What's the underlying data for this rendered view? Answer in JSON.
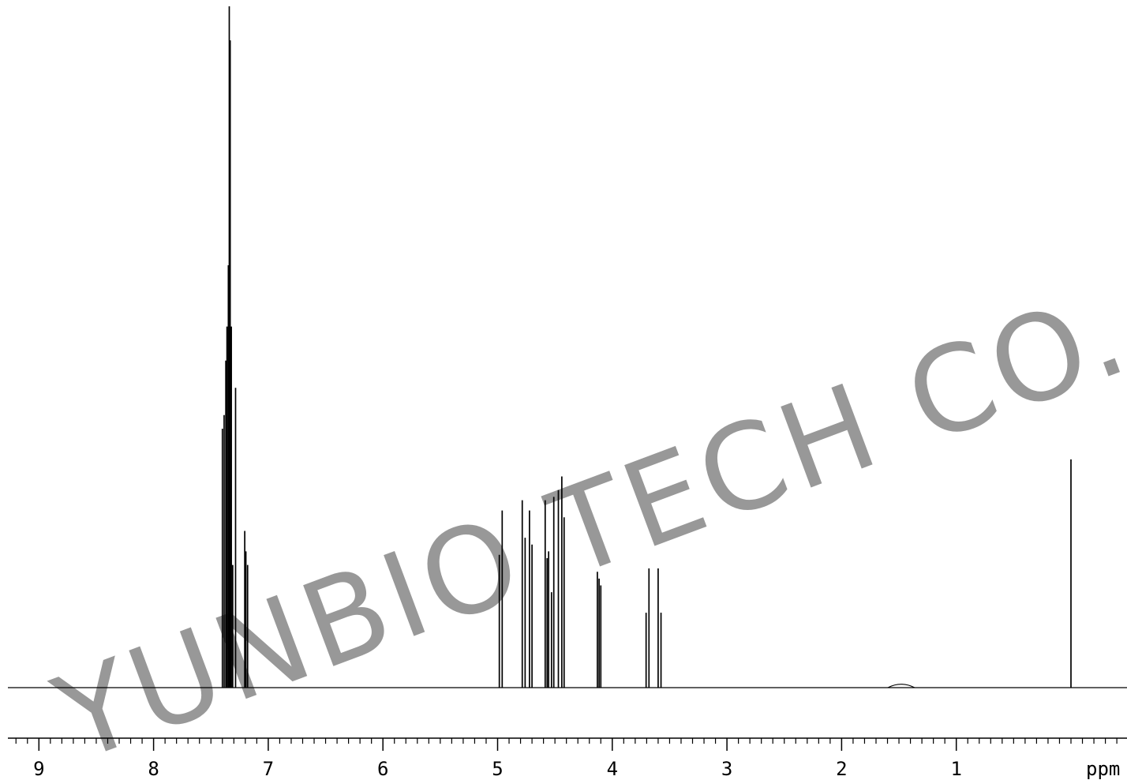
{
  "watermark": {
    "text": "YUNBIO TECH CO.,LTD"
  },
  "chart_data": {
    "type": "line",
    "title": "",
    "xlabel": "ppm",
    "ylabel": "",
    "x_reversed": true,
    "xlim": [
      9.3,
      -0.5
    ],
    "ylim": [
      0,
      1
    ],
    "grid": false,
    "legend": "none",
    "major_ticks": [
      9,
      8,
      7,
      6,
      5,
      4,
      3,
      2,
      1
    ],
    "tick_labels": [
      "9",
      "8",
      "7",
      "6",
      "5",
      "4",
      "3",
      "2",
      "1"
    ],
    "minor_tick_step": 0.1,
    "line_color": "#000000",
    "watermark_color": "#8a8a8a",
    "peaks": [
      {
        "ppm": 7.4,
        "h": 0.38
      },
      {
        "ppm": 7.385,
        "h": 0.4
      },
      {
        "ppm": 7.37,
        "h": 0.48
      },
      {
        "ppm": 7.36,
        "h": 0.53
      },
      {
        "ppm": 7.348,
        "h": 0.62
      },
      {
        "ppm": 7.34,
        "h": 1.0
      },
      {
        "ppm": 7.332,
        "h": 0.95
      },
      {
        "ppm": 7.322,
        "h": 0.53
      },
      {
        "ppm": 7.31,
        "h": 0.18
      },
      {
        "ppm": 7.285,
        "h": 0.44
      },
      {
        "ppm": 7.205,
        "h": 0.23
      },
      {
        "ppm": 7.195,
        "h": 0.2
      },
      {
        "ppm": 7.18,
        "h": 0.18
      },
      {
        "ppm": 4.985,
        "h": 0.195
      },
      {
        "ppm": 4.96,
        "h": 0.26
      },
      {
        "ppm": 4.785,
        "h": 0.275
      },
      {
        "ppm": 4.76,
        "h": 0.22
      },
      {
        "ppm": 4.722,
        "h": 0.26
      },
      {
        "ppm": 4.7,
        "h": 0.21
      },
      {
        "ppm": 4.585,
        "h": 0.275
      },
      {
        "ppm": 4.568,
        "h": 0.19
      },
      {
        "ppm": 4.555,
        "h": 0.2
      },
      {
        "ppm": 4.53,
        "h": 0.14
      },
      {
        "ppm": 4.51,
        "h": 0.28
      },
      {
        "ppm": 4.47,
        "h": 0.29
      },
      {
        "ppm": 4.44,
        "h": 0.31
      },
      {
        "ppm": 4.42,
        "h": 0.25
      },
      {
        "ppm": 4.13,
        "h": 0.17
      },
      {
        "ppm": 4.115,
        "h": 0.16
      },
      {
        "ppm": 4.1,
        "h": 0.15
      },
      {
        "ppm": 3.705,
        "h": 0.11
      },
      {
        "ppm": 3.68,
        "h": 0.175
      },
      {
        "ppm": 3.6,
        "h": 0.175
      },
      {
        "ppm": 3.575,
        "h": 0.11
      },
      {
        "ppm": 1.48,
        "h": 0.005
      },
      {
        "ppm": 0.0,
        "h": 0.335
      }
    ]
  }
}
